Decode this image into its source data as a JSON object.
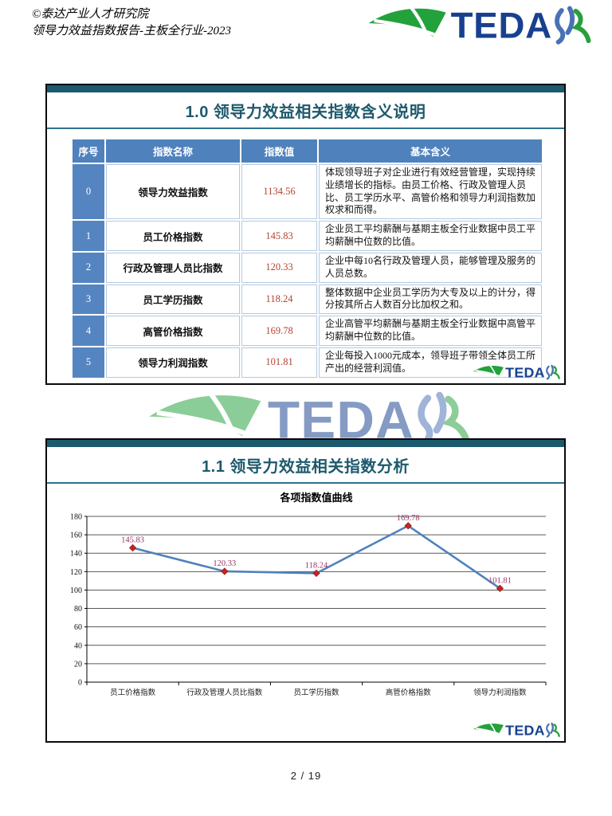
{
  "header": {
    "line1": "©泰达产业人才研究院",
    "line2": "领导力效益指数报告-主板全行业-2023"
  },
  "brand": {
    "name": "TEDA",
    "swoosh_green": "#23a13b",
    "text_blue": "#17418f",
    "hr_blue": "#4a71b5",
    "hr_green": "#27a03c"
  },
  "colors": {
    "teal_bar": "#1d5a6e",
    "title_text": "#1e5a6d",
    "divider": "#2e7390",
    "table_header_bg": "#4f81bd",
    "table_no_bg": "#5585c0",
    "cell_border": "#b3c9e2",
    "value_text": "#b5432f"
  },
  "section1": {
    "title": "1.0 领导力效益相关指数含义说明"
  },
  "section2": {
    "title": "1.1 领导力效益相关指数分析"
  },
  "table": {
    "headers": [
      "序号",
      "指数名称",
      "指数值",
      "基本含义"
    ],
    "rows": [
      {
        "no": "0",
        "name": "领导力效益指数",
        "value": "1134.56",
        "desc": "体现领导班子对企业进行有效经营管理，实现持续业绩增长的指标。由员工价格、行政及管理人员比、员工学历水平、高管价格和领导力利润指数加权求和而得。"
      },
      {
        "no": "1",
        "name": "员工价格指数",
        "value": "145.83",
        "desc": "企业员工平均薪酬与基期主板全行业数据中员工平均薪酬中位数的比值。"
      },
      {
        "no": "2",
        "name": "行政及管理人员比指数",
        "value": "120.33",
        "desc": "企业中每10名行政及管理人员，能够管理及服务的人员总数。"
      },
      {
        "no": "3",
        "name": "员工学历指数",
        "value": "118.24",
        "desc": "整体数据中企业员工学历为大专及以上的计分，得分按其所占人数百分比加权之和。"
      },
      {
        "no": "4",
        "name": "高管价格指数",
        "value": "169.78",
        "desc": "企业高管平均薪酬与基期主板全行业数据中高管平均薪酬中位数的比值。"
      },
      {
        "no": "5",
        "name": "领导力利润指数",
        "value": "101.81",
        "desc": "企业每投入1000元成本，领导班子带领全体员工所产出的经营利润值。"
      }
    ]
  },
  "chart_data": {
    "type": "line",
    "title": "各项指数值曲线",
    "categories": [
      "员工价格指数",
      "行政及管理人员比指数",
      "员工学历指数",
      "高管价格指数",
      "领导力利润指数"
    ],
    "values": [
      145.83,
      120.33,
      118.24,
      169.78,
      101.81
    ],
    "ylim": [
      0,
      180
    ],
    "ytick_step": 20,
    "grid": true,
    "legend": "none",
    "line_color": "#4f81bd",
    "marker_color": "#cc2222",
    "label_color": "#993366"
  },
  "footer": {
    "page_indicator": "2 / 19"
  }
}
